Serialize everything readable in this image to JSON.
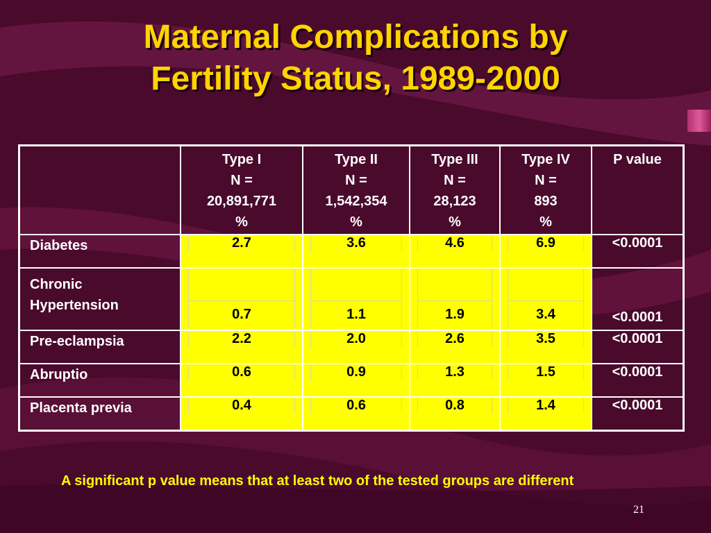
{
  "slide": {
    "title_line1": "Maternal Complications by",
    "title_line2": "Fertility Status, 1989-2000",
    "footnote": "A significant p value means that at least two of the tested groups are different",
    "page_number": "21"
  },
  "table": {
    "columns": [
      {
        "name": "Type I",
        "n_label": "N =",
        "n": "20,891,771",
        "unit": "%"
      },
      {
        "name": "Type II",
        "n_label": "N =",
        "n": "1,542,354",
        "unit": "%"
      },
      {
        "name": "Type III",
        "n_label": "N =",
        "n": "28,123",
        "unit": "%"
      },
      {
        "name": "Type IV",
        "n_label": "N =",
        "n": "893",
        "unit": "%"
      }
    ],
    "pvalue_header": "P value",
    "rows": [
      {
        "label": "Diabetes",
        "values": [
          "2.7",
          "3.6",
          "4.6",
          "6.9"
        ],
        "p": "<0.0001"
      },
      {
        "label_line1": "Chronic",
        "label_line2": "Hypertension",
        "values": [
          "0.7",
          "1.1",
          "1.9",
          "3.4"
        ],
        "p": "<0.0001"
      },
      {
        "label": "Pre-eclampsia",
        "values": [
          "2.2",
          "2.0",
          "2.6",
          "3.5"
        ],
        "p": "<0.0001"
      },
      {
        "label": "Abruptio",
        "values": [
          "0.6",
          "0.9",
          "1.3",
          "1.5"
        ],
        "p": "<0.0001"
      },
      {
        "label": "Placenta previa",
        "values": [
          "0.4",
          "0.6",
          "0.8",
          "1.4"
        ],
        "p": "<0.0001"
      }
    ]
  },
  "colors": {
    "background": "#4a0a2c",
    "title": "#ffd400",
    "cell_highlight": "#ffff00",
    "footnote": "#ffff00"
  }
}
